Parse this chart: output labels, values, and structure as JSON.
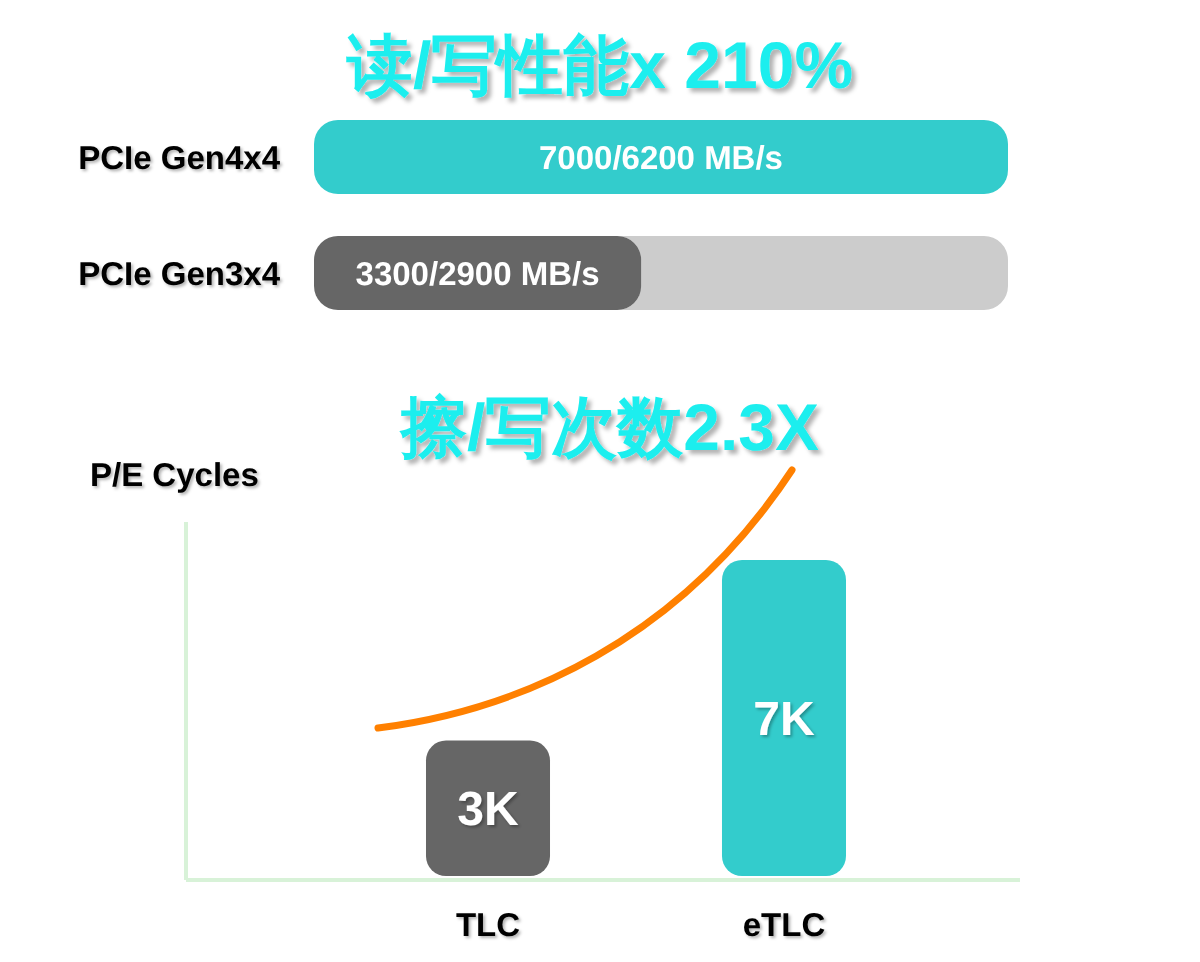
{
  "chart_data": [
    {
      "type": "bar",
      "orientation": "horizontal",
      "title": "读/写性能x 210%",
      "categories": [
        "PCIe Gen4x4",
        "PCIe Gen3x4"
      ],
      "values": [
        7000,
        3300
      ],
      "colors": [
        "#33cccc",
        "#666666"
      ],
      "value_labels": [
        "7000/6200 MB/s",
        "3300/2900 MB/s"
      ]
    },
    {
      "type": "bar",
      "title": "擦/写次数2.3X",
      "ylabel": "P/E Cycles",
      "categories": [
        "TLC",
        "eTLC"
      ],
      "values": [
        3000,
        7000
      ],
      "colors": [
        "#666666",
        "#33cccc"
      ],
      "value_labels": [
        "3K",
        "7K"
      ]
    }
  ]
}
